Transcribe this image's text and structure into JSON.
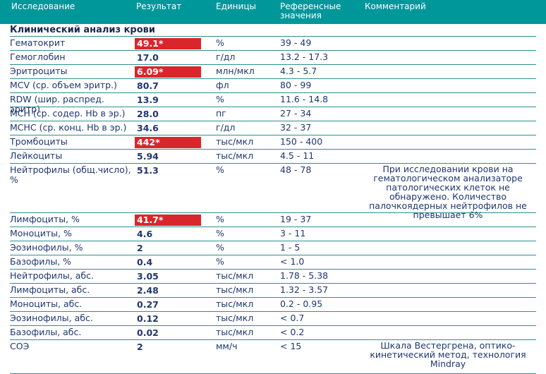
{
  "header": {
    "study": "Исследование",
    "result": "Результат",
    "units": "Единицы",
    "ref_line1": "Референсные",
    "ref_line2": "значения",
    "comment": "Комментарий"
  },
  "section": {
    "title": "Клинический анализ крови"
  },
  "rows": [
    {
      "name": "Гематокрит",
      "result": "49.1*",
      "flag": true,
      "units": "%",
      "ref": "39 - 49",
      "comment": ""
    },
    {
      "name": "Гемоглобин",
      "result": "17.0",
      "flag": false,
      "units": "г/дл",
      "ref": "13.2 - 17.3",
      "comment": ""
    },
    {
      "name": "Эритроциты",
      "result": "6.09*",
      "flag": true,
      "units": "млн/мкл",
      "ref": "4.3 - 5.7",
      "comment": ""
    },
    {
      "name": "MCV (ср. объем эритр.)",
      "result": "80.7",
      "flag": false,
      "units": "фл",
      "ref": "80 - 99",
      "comment": ""
    },
    {
      "name": "RDW (шир. распред. эритр)",
      "result": "13.9",
      "flag": false,
      "units": "%",
      "ref": "11.6 - 14.8",
      "comment": ""
    },
    {
      "name": "MCH (ср. содер. Hb в эр.)",
      "result": "28.0",
      "flag": false,
      "units": "пг",
      "ref": "27 - 34",
      "comment": ""
    },
    {
      "name": "MCHC (ср. конц. Hb в эр.)",
      "result": "34.6",
      "flag": false,
      "units": "г/дл",
      "ref": "32 - 37",
      "comment": ""
    },
    {
      "name": "Тромбоциты",
      "result": "442*",
      "flag": true,
      "units": "тыс/мкл",
      "ref": "150 - 400",
      "comment": ""
    },
    {
      "name": "Лейкоциты",
      "result": "5.94",
      "flag": false,
      "units": "тыс/мкл",
      "ref": "4.5 - 11",
      "comment": ""
    },
    {
      "name": "Нейтрофилы (общ.число), %",
      "result": "51.3",
      "flag": false,
      "units": "%",
      "ref": "48 - 78",
      "comment": "При исследовании крови на гематологическом анализаторе патологических клеток не обнаружено. Количество палочкоядерных нейтрофилов не превышает 6%"
    },
    {
      "name": "Лимфоциты, %",
      "result": "41.7*",
      "flag": true,
      "units": "%",
      "ref": "19 - 37",
      "comment": ""
    },
    {
      "name": "Моноциты, %",
      "result": "4.6",
      "flag": false,
      "units": "%",
      "ref": "3 - 11",
      "comment": ""
    },
    {
      "name": "Эозинофилы, %",
      "result": "2",
      "flag": false,
      "units": "%",
      "ref": "1 - 5",
      "comment": ""
    },
    {
      "name": "Базофилы, %",
      "result": "0.4",
      "flag": false,
      "units": "%",
      "ref": "< 1.0",
      "comment": ""
    },
    {
      "name": "Нейтрофилы, абс.",
      "result": "3.05",
      "flag": false,
      "units": "тыс/мкл",
      "ref": "1.78 - 5.38",
      "comment": ""
    },
    {
      "name": "Лимфоциты, абс.",
      "result": "2.48",
      "flag": false,
      "units": "тыс/мкл",
      "ref": "1.32 - 3.57",
      "comment": ""
    },
    {
      "name": "Моноциты, абс.",
      "result": "0.27",
      "flag": false,
      "units": "тыс/мкл",
      "ref": "0.2 - 0.95",
      "comment": ""
    },
    {
      "name": "Эозинофилы, абс.",
      "result": "0.12",
      "flag": false,
      "units": "тыс/мкл",
      "ref": "< 0.7",
      "comment": ""
    },
    {
      "name": "Базофилы, абс.",
      "result": "0.02",
      "flag": false,
      "units": "тыс/мкл",
      "ref": "< 0.2",
      "comment": ""
    },
    {
      "name": "СОЭ",
      "result": "2",
      "flag": false,
      "units": "мм/ч",
      "ref": "< 15",
      "comment": "Шкала Вестергрена, оптико-кинетический метод, технология Mindray"
    }
  ]
}
